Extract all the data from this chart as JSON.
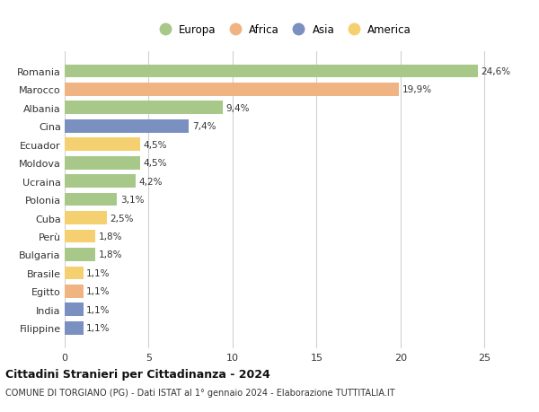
{
  "countries": [
    "Romania",
    "Marocco",
    "Albania",
    "Cina",
    "Ecuador",
    "Moldova",
    "Ucraina",
    "Polonia",
    "Cuba",
    "Perù",
    "Bulgaria",
    "Brasile",
    "Egitto",
    "India",
    "Filippine"
  ],
  "values": [
    24.6,
    19.9,
    9.4,
    7.4,
    4.5,
    4.5,
    4.2,
    3.1,
    2.5,
    1.8,
    1.8,
    1.1,
    1.1,
    1.1,
    1.1
  ],
  "labels": [
    "24,6%",
    "19,9%",
    "9,4%",
    "7,4%",
    "4,5%",
    "4,5%",
    "4,2%",
    "3,1%",
    "2,5%",
    "1,8%",
    "1,8%",
    "1,1%",
    "1,1%",
    "1,1%",
    "1,1%"
  ],
  "continents": [
    "Europa",
    "Africa",
    "Europa",
    "Asia",
    "America",
    "Europa",
    "Europa",
    "Europa",
    "America",
    "America",
    "Europa",
    "America",
    "Africa",
    "Asia",
    "Asia"
  ],
  "continent_colors": {
    "Europa": "#a8c88a",
    "Africa": "#f0b482",
    "Asia": "#7a90c0",
    "America": "#f5d070"
  },
  "legend_items": [
    "Europa",
    "Africa",
    "Asia",
    "America"
  ],
  "xlim": [
    0,
    26
  ],
  "xticks": [
    0,
    5,
    10,
    15,
    20,
    25
  ],
  "title": "Cittadini Stranieri per Cittadinanza - 2024",
  "subtitle": "COMUNE DI TORGIANO (PG) - Dati ISTAT al 1° gennaio 2024 - Elaborazione TUTTITALIA.IT",
  "background_color": "#ffffff",
  "grid_color": "#d0d0d0",
  "bar_height": 0.72
}
